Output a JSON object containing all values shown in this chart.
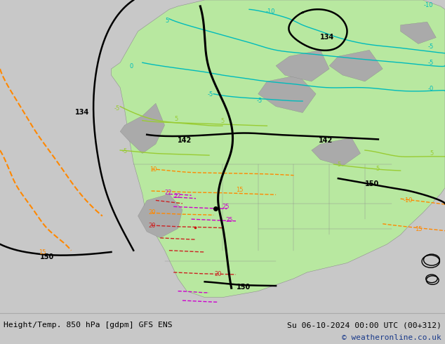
{
  "title_left": "Height/Temp. 850 hPa [gdpm] GFS ENS",
  "title_right": "Su 06-10-2024 00:00 UTC (00+312)",
  "copyright": "© weatheronline.co.uk",
  "bg_color": "#c8c8c8",
  "land_green": "#b8e8a0",
  "land_gray": "#aaaaaa",
  "water_color": "#c8c8c8",
  "bottom_bar_color": "#e8e8e8",
  "copyright_color": "#1a3a8a",
  "sep_line_color": "#aaaaaa"
}
